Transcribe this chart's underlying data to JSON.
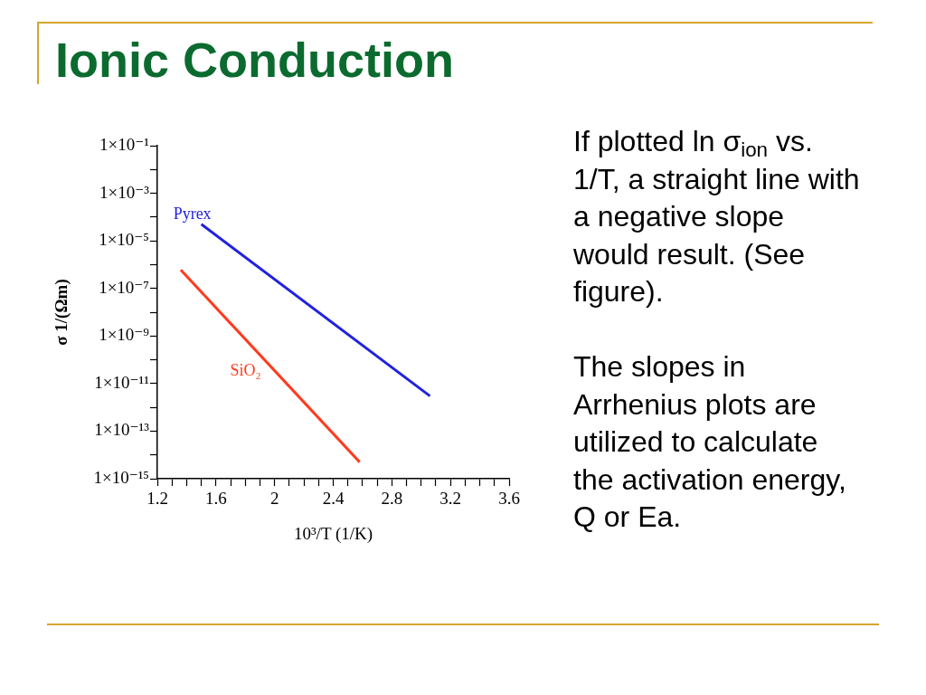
{
  "chart_data": {
    "type": "line",
    "title": "Ionic Conduction",
    "xlabel": "10³/T (1/K)",
    "ylabel": "σ 1/(Ωm)",
    "series": [
      {
        "name": "Pyrex",
        "color": "#2121e0",
        "x": [
          1.5,
          3.06
        ],
        "values": [
          5e-05,
          3e-12
        ]
      },
      {
        "name": "SiO₂",
        "color": "#ff3b1f",
        "x": [
          1.36,
          2.58
        ],
        "values": [
          6e-07,
          5e-15
        ]
      }
    ],
    "xlim": [
      1.2,
      3.6
    ],
    "xticks": [
      1.2,
      {
        "value": 1.3,
        "label": null
      },
      {
        "value": 1.4,
        "label": null
      },
      {
        "value": 1.5,
        "label": null
      },
      1.6,
      {
        "value": 1.7,
        "label": null
      },
      {
        "value": 1.8,
        "label": null
      },
      {
        "value": 1.9,
        "label": null
      },
      2,
      {
        "value": 2.1,
        "label": null
      },
      {
        "value": 2.2,
        "label": null
      },
      {
        "value": 2.3,
        "label": null
      },
      2.4,
      {
        "value": 2.5,
        "label": null
      },
      {
        "value": 2.6,
        "label": null
      },
      {
        "value": 2.7,
        "label": null
      },
      2.8,
      {
        "value": 2.9,
        "label": null
      },
      {
        "value": 3.0,
        "label": null
      },
      {
        "value": 3.1,
        "label": null
      },
      3.2,
      {
        "value": 3.3,
        "label": null
      },
      {
        "value": 3.4,
        "label": null
      },
      {
        "value": 3.5,
        "label": null
      },
      3.6
    ],
    "ylim": [
      1e-15,
      0.1
    ],
    "yticks": [
      {
        "value": 0.1,
        "label": "1×10⁻¹"
      },
      {
        "value": 0.01,
        "label": null
      },
      {
        "value": 0.001,
        "label": "1×10⁻³"
      },
      {
        "value": 0.0001,
        "label": null
      },
      {
        "value": 1e-05,
        "label": "1×10⁻⁵"
      },
      {
        "value": 1e-06,
        "label": null
      },
      {
        "value": 1e-07,
        "label": "1×10⁻⁷"
      },
      {
        "value": 1e-08,
        "label": null
      },
      {
        "value": 1e-09,
        "label": "1×10⁻⁹"
      },
      {
        "value": 1e-10,
        "label": null
      },
      {
        "value": 1e-11,
        "label": "1×10⁻¹¹"
      },
      {
        "value": 1e-12,
        "label": null
      },
      {
        "value": 1e-13,
        "label": "1×10⁻¹³"
      },
      {
        "value": 1e-14,
        "label": null
      },
      {
        "value": 1e-15,
        "label": "1×10⁻¹⁵"
      }
    ],
    "log": "y",
    "annotations": [
      "If plotted ln σ$_{ion}$ vs. 1/T, a straight line with a negative slope would result. (See figure).",
      "The slopes in Arrhenius plots are utilized to calculate the activation energy, Q or Ea."
    ]
  }
}
